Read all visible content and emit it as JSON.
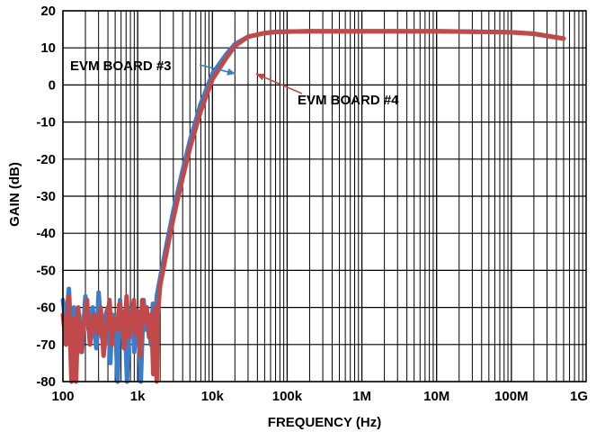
{
  "chart_data": {
    "type": "line",
    "title": "",
    "xlabel": "FREQUENCY (Hz)",
    "ylabel": "GAIN (dB)",
    "xscale": "log",
    "xlim": [
      100,
      1000000000
    ],
    "ylim": [
      -80,
      20
    ],
    "grid": true,
    "xticks": [
      {
        "value": 100,
        "label": "100"
      },
      {
        "value": 1000,
        "label": "1k"
      },
      {
        "value": 10000,
        "label": "10k"
      },
      {
        "value": 100000,
        "label": "100k"
      },
      {
        "value": 1000000,
        "label": "1M"
      },
      {
        "value": 10000000,
        "label": "10M"
      },
      {
        "value": 100000000,
        "label": "100M"
      },
      {
        "value": 1000000000,
        "label": "1G"
      }
    ],
    "yticks": [
      {
        "value": 20,
        "label": "20"
      },
      {
        "value": 10,
        "label": "10"
      },
      {
        "value": 0,
        "label": "0"
      },
      {
        "value": -10,
        "label": "-10"
      },
      {
        "value": -20,
        "label": "-20"
      },
      {
        "value": -30,
        "label": "-30"
      },
      {
        "value": -40,
        "label": "-40"
      },
      {
        "value": -50,
        "label": "-50"
      },
      {
        "value": -60,
        "label": "-60"
      },
      {
        "value": -70,
        "label": "-70"
      },
      {
        "value": -80,
        "label": "-80"
      }
    ],
    "series": [
      {
        "name": "EVM BOARD #3",
        "color": "#3a7dc9",
        "x": [
          100,
          110,
          120,
          130,
          140,
          150,
          165,
          180,
          200,
          220,
          250,
          280,
          300,
          330,
          360,
          400,
          430,
          460,
          500,
          540,
          580,
          620,
          670,
          720,
          780,
          850,
          900,
          950,
          1000,
          1100,
          1200,
          1300,
          1400,
          1500,
          1600,
          1700,
          1800,
          2000,
          2500,
          3000,
          4000,
          5000,
          7000,
          10000,
          15000,
          20000,
          30000,
          50000,
          70000,
          100000,
          200000,
          1000000,
          10000000,
          100000000,
          200000000,
          500000000
        ],
        "y": [
          -58,
          -65,
          -55,
          -70,
          -60,
          -67,
          -62,
          -72,
          -57,
          -66,
          -60,
          -71,
          -56,
          -68,
          -63,
          -60,
          -75,
          -62,
          -64,
          -80,
          -58,
          -67,
          -61,
          -80,
          -63,
          -60,
          -72,
          -65,
          -61,
          -80,
          -58,
          -66,
          -62,
          -70,
          -59,
          -68,
          -57,
          -52,
          -42,
          -34,
          -23,
          -15,
          -5,
          3,
          8,
          11,
          13,
          14,
          14.3,
          14.4,
          14.5,
          14.5,
          14.5,
          14.2,
          13.8,
          12.5
        ]
      },
      {
        "name": "EVM BOARD #4",
        "color": "#c1494a",
        "x": [
          100,
          110,
          120,
          130,
          140,
          150,
          160,
          175,
          190,
          210,
          230,
          260,
          290,
          320,
          350,
          390,
          420,
          450,
          490,
          530,
          570,
          610,
          660,
          710,
          770,
          830,
          890,
          940,
          1000,
          1080,
          1150,
          1230,
          1320,
          1420,
          1520,
          1620,
          1720,
          1800,
          1850,
          2000,
          2500,
          3000,
          4000,
          5000,
          7000,
          10000,
          15000,
          20000,
          30000,
          50000,
          70000,
          100000,
          200000,
          1000000,
          10000000,
          100000000,
          200000000,
          500000000
        ],
        "y": [
          -62,
          -70,
          -57,
          -80,
          -63,
          -80,
          -60,
          -72,
          -65,
          -58,
          -70,
          -62,
          -67,
          -60,
          -73,
          -64,
          -58,
          -70,
          -63,
          -66,
          -59,
          -62,
          -71,
          -57,
          -68,
          -63,
          -58,
          -67,
          -61,
          -73,
          -58,
          -64,
          -60,
          -68,
          -62,
          -78,
          -60,
          -80,
          -62,
          -54,
          -44,
          -36,
          -25,
          -17,
          -7,
          1.5,
          7,
          10.5,
          13,
          14,
          14.3,
          14.4,
          14.5,
          14.5,
          14.5,
          14.2,
          13.8,
          12.5
        ]
      }
    ],
    "annotations": [
      {
        "text": "EVM BOARD #3",
        "series": 0
      },
      {
        "text": "EVM BOARD #4",
        "series": 1
      }
    ]
  }
}
